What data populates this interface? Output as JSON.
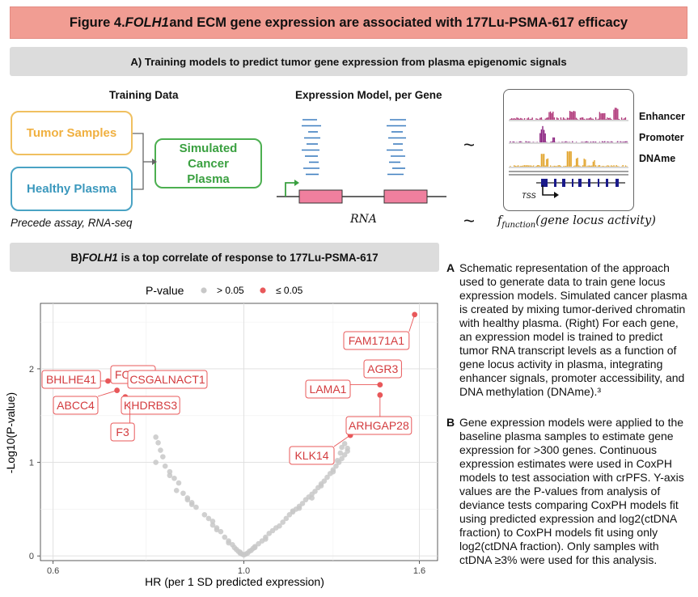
{
  "figure_title_prefix": "Figure 4. ",
  "figure_title_gene": "FOLH1",
  "figure_title_suffix": " and ECM gene expression are associated with 177Lu-PSMA-617 efficacy",
  "sectionA_title": "A) Training models to predict tumor gene expression from plasma epigenomic signals",
  "training": {
    "heading": "Training Data",
    "tumor": "Tumor Samples",
    "healthy": "Healthy Plasma",
    "simulated": "Simulated Cancer Plasma",
    "assay": "Precede assay, RNA-seq"
  },
  "expression_model": {
    "heading": "Expression Model, per Gene",
    "rna_label": "RNA",
    "tilde": "~",
    "formula_f": "f",
    "formula_sub": "function",
    "formula_arg": "(gene locus activity)",
    "tracks": [
      "Enhancer",
      "Promoter",
      "DNAme"
    ],
    "tss": "TSS"
  },
  "sectionB_title_prefix": "B) ",
  "sectionB_title_gene": "FOLH1",
  "sectionB_title_suffix": " is a top correlate of response to 177Lu-PSMA-617",
  "chart_data": {
    "type": "scatter",
    "xlabel": "HR (per 1 SD predicted expression)",
    "ylabel": "-Log10(P-value)",
    "xscale": "log",
    "xlim": [
      0.58,
      1.68
    ],
    "ylim": [
      -0.05,
      2.7
    ],
    "xticks": [
      0.6,
      1.0,
      1.6
    ],
    "xtick_labels": [
      "0.6",
      "1.0",
      "1.6"
    ],
    "yticks": [
      0,
      1,
      2
    ],
    "ytick_labels": [
      "0",
      "1",
      "2"
    ],
    "legend": {
      "title": "P-value",
      "items": [
        {
          "label": "> 0.05",
          "color": "#c8c8c8"
        },
        {
          "label": "≤ 0.05",
          "color": "#e8585a"
        }
      ],
      "position": "top"
    },
    "significant": [
      {
        "gene": "FOLH1",
        "hr": 0.735,
        "p": 1.97
      },
      {
        "gene": "CSGALNACT1",
        "hr": 0.732,
        "p": 1.9
      },
      {
        "gene": "BHLHE41",
        "hr": 0.695,
        "p": 1.87
      },
      {
        "gene": "ABCC4",
        "hr": 0.712,
        "p": 1.77
      },
      {
        "gene": "KHDRBS3",
        "hr": 0.728,
        "p": 1.7
      },
      {
        "gene": "F3",
        "hr": 0.737,
        "p": 1.65
      },
      {
        "gene": "FAM171A1",
        "hr": 1.58,
        "p": 2.58
      },
      {
        "gene": "AGR3",
        "hr": 1.45,
        "p": 1.97
      },
      {
        "gene": "LAMA1",
        "hr": 1.44,
        "p": 1.83
      },
      {
        "gene": "ARHGAP28",
        "hr": 1.44,
        "p": 1.72
      },
      {
        "gene": "KLK14",
        "hr": 1.33,
        "p": 1.29
      }
    ],
    "nonsignificant": [
      [
        0.79,
        1.27
      ],
      [
        0.795,
        1.21
      ],
      [
        0.8,
        1.13
      ],
      [
        0.805,
        1.06
      ],
      [
        0.79,
        1.0
      ],
      [
        0.81,
        0.96
      ],
      [
        0.82,
        0.86
      ],
      [
        0.83,
        0.83
      ],
      [
        0.84,
        0.78
      ],
      [
        0.835,
        0.7
      ],
      [
        0.85,
        0.67
      ],
      [
        0.86,
        0.6
      ],
      [
        0.87,
        0.55
      ],
      [
        0.88,
        0.52
      ],
      [
        0.9,
        0.44
      ],
      [
        0.91,
        0.4
      ],
      [
        0.92,
        0.33
      ],
      [
        0.93,
        0.3
      ],
      [
        0.94,
        0.26
      ],
      [
        0.95,
        0.2
      ],
      [
        0.96,
        0.16
      ],
      [
        0.97,
        0.12
      ],
      [
        0.975,
        0.09
      ],
      [
        0.98,
        0.07
      ],
      [
        0.985,
        0.05
      ],
      [
        0.99,
        0.03
      ],
      [
        0.995,
        0.02
      ],
      [
        1.0,
        0.01
      ],
      [
        1.005,
        0.02
      ],
      [
        1.01,
        0.03
      ],
      [
        1.015,
        0.05
      ],
      [
        1.02,
        0.06
      ],
      [
        1.025,
        0.08
      ],
      [
        1.03,
        0.1
      ],
      [
        1.04,
        0.13
      ],
      [
        1.05,
        0.16
      ],
      [
        1.06,
        0.2
      ],
      [
        1.07,
        0.24
      ],
      [
        1.08,
        0.27
      ],
      [
        1.1,
        0.32
      ],
      [
        1.11,
        0.36
      ],
      [
        1.12,
        0.4
      ],
      [
        1.13,
        0.44
      ],
      [
        1.14,
        0.47
      ],
      [
        1.15,
        0.5
      ],
      [
        1.16,
        0.53
      ],
      [
        1.17,
        0.56
      ],
      [
        1.18,
        0.6
      ],
      [
        1.19,
        0.63
      ],
      [
        1.2,
        0.66
      ],
      [
        1.21,
        0.69
      ],
      [
        1.22,
        0.73
      ],
      [
        1.23,
        0.77
      ],
      [
        1.24,
        0.8
      ],
      [
        1.25,
        0.84
      ],
      [
        1.26,
        0.88
      ],
      [
        1.27,
        0.92
      ],
      [
        1.28,
        0.96
      ],
      [
        1.29,
        1.0
      ],
      [
        1.3,
        1.04
      ],
      [
        1.31,
        1.08
      ],
      [
        1.32,
        1.12
      ],
      [
        1.3,
        1.16
      ],
      [
        1.31,
        1.2
      ],
      [
        1.295,
        1.1
      ],
      [
        1.285,
        1.02
      ],
      [
        0.82,
        0.9
      ],
      [
        0.87,
        0.57
      ],
      [
        0.92,
        0.37
      ],
      [
        0.96,
        0.14
      ],
      [
        0.99,
        0.04
      ],
      [
        1.03,
        0.09
      ],
      [
        1.09,
        0.3
      ],
      [
        1.16,
        0.51
      ],
      [
        1.23,
        0.75
      ],
      [
        1.27,
        0.9
      ],
      [
        1.32,
        1.15
      ],
      [
        0.86,
        0.62
      ],
      [
        0.93,
        0.28
      ],
      [
        1.06,
        0.18
      ],
      [
        1.14,
        0.48
      ],
      [
        1.2,
        0.62
      ]
    ]
  },
  "captionA": {
    "letter": "A",
    "text": "Schematic representation of the approach used to generate data to train gene locus expression models. Simulated cancer plasma is created by mixing tumor-derived chromatin with healthy plasma. (Right) For each gene, an expression model is trained to predict tumor RNA transcript levels as a function of gene locus activity in plasma, integrating enhancer signals, promoter accessibility, and DNA methylation (DNAme).³"
  },
  "captionB": {
    "letter": "B",
    "text": "Gene expression models were applied to the baseline plasma samples to estimate gene expression for >300 genes. Continuous expression estimates were used in CoxPH models to test association with crPFS. Y-axis values are the P-values from analysis of deviance tests comparing CoxPH models fit using predicted expression and log2(ctDNA fraction) to CoxPH models fit using only log2(ctDNA fraction). Only samples with ctDNA ≥3% were used for this analysis."
  },
  "colors": {
    "banner": "#f19d93",
    "tumor": "#f0c060",
    "healthy": "#4aa3c4",
    "simulated": "#4caf50",
    "sig": "#e8585a",
    "nonsig": "#c8c8c8",
    "exon": "#ef7f9e",
    "enhancer": "#b0397a",
    "promoter": "#8b2380",
    "dname": "#e2a52e"
  }
}
